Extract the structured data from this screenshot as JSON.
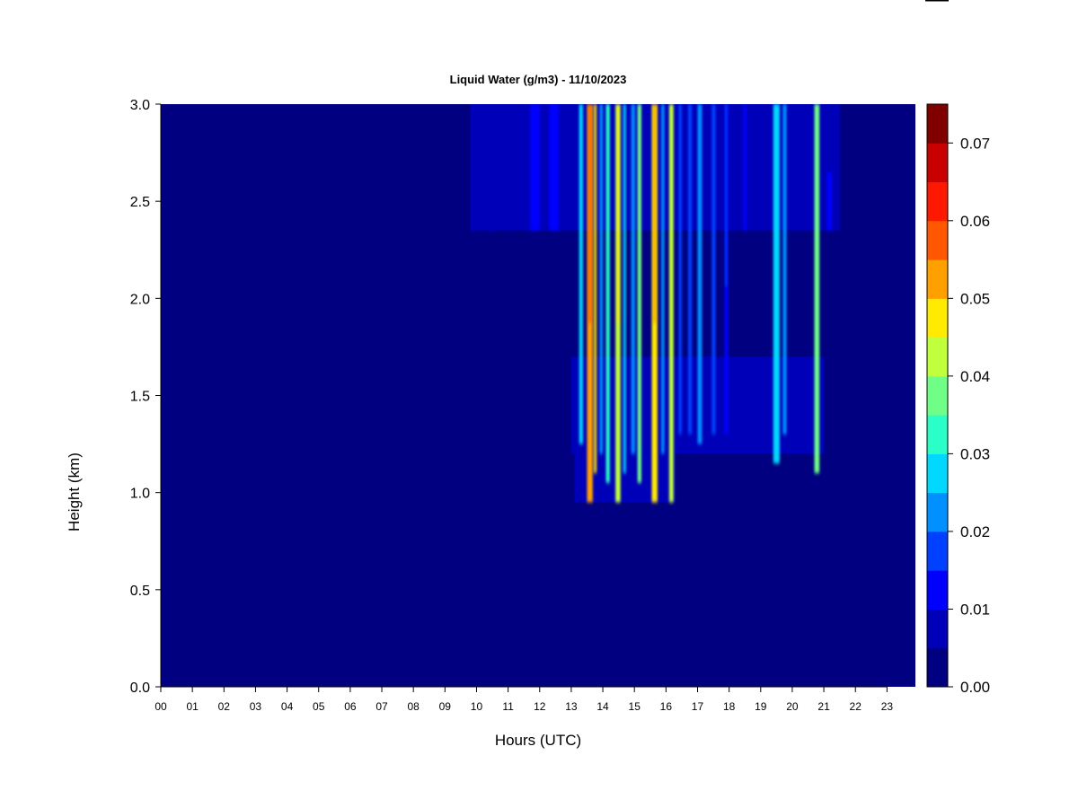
{
  "chart_data": {
    "type": "heatmap",
    "title": "Liquid Water (g/m3) - 11/10/2023",
    "xlabel": "Hours (UTC)",
    "ylabel": "Height (km)",
    "xlim": [
      0,
      23.9
    ],
    "ylim": [
      0,
      3
    ],
    "x_ticks": [
      "00",
      "01",
      "02",
      "03",
      "04",
      "05",
      "06",
      "07",
      "08",
      "09",
      "10",
      "11",
      "12",
      "13",
      "14",
      "15",
      "16",
      "17",
      "18",
      "19",
      "20",
      "21",
      "22",
      "23"
    ],
    "y_ticks": [
      "0.0",
      "0.5",
      "1.0",
      "1.5",
      "2.0",
      "2.5",
      "3.0"
    ],
    "colorbar": {
      "min": 0,
      "max": 0.075,
      "step": 0.005,
      "tick_values": [
        0.0,
        0.01,
        0.02,
        0.03,
        0.04,
        0.05,
        0.06,
        0.07
      ],
      "tick_labels": [
        "0.00",
        "0.01",
        "0.02",
        "0.03",
        "0.04",
        "0.05",
        "0.06",
        "0.07"
      ],
      "colors": [
        "#000080",
        "#0000b8",
        "#0000ff",
        "#0040ff",
        "#0090ff",
        "#00d8ff",
        "#2affc8",
        "#70ff86",
        "#c0ff3c",
        "#ffea00",
        "#ffa000",
        "#ff5800",
        "#ff1800",
        "#c80000",
        "#800000"
      ]
    },
    "background_value": 0.0,
    "cloud_layers": [
      {
        "name_hint": "upper",
        "x_range": [
          9.8,
          21.5
        ],
        "y_range": [
          2.35,
          3.0
        ]
      },
      {
        "name_hint": "middle",
        "x_range": [
          13.0,
          21.0
        ],
        "y_range": [
          1.2,
          1.7
        ]
      },
      {
        "name_hint": "lower",
        "x_range": [
          13.1,
          16.3
        ],
        "y_range": [
          0.95,
          1.3
        ]
      }
    ],
    "columns": [
      {
        "x": 9.85,
        "w": 0.15,
        "y0": 2.35,
        "y1": 3.0,
        "v": 0.007
      },
      {
        "x": 10.35,
        "w": 0.25,
        "y0": 2.35,
        "y1": 3.0,
        "v": 0.009
      },
      {
        "x": 10.9,
        "w": 0.3,
        "y0": 2.85,
        "y1": 3.0,
        "v": 0.008
      },
      {
        "x": 11.7,
        "w": 0.3,
        "y0": 2.35,
        "y1": 3.0,
        "v": 0.012
      },
      {
        "x": 12.3,
        "w": 0.3,
        "y0": 2.35,
        "y1": 3.0,
        "v": 0.013
      },
      {
        "x": 13.25,
        "w": 0.12,
        "y0": 1.25,
        "y1": 3.0,
        "v": 0.025
      },
      {
        "x": 13.5,
        "w": 0.18,
        "y0": 0.95,
        "y1": 3.0,
        "v": 0.05
      },
      {
        "x": 13.72,
        "w": 0.08,
        "y0": 1.1,
        "y1": 3.0,
        "v": 0.045
      },
      {
        "x": 13.9,
        "w": 0.1,
        "y0": 1.2,
        "y1": 3.0,
        "v": 0.02
      },
      {
        "x": 14.1,
        "w": 0.12,
        "y0": 1.05,
        "y1": 3.0,
        "v": 0.03
      },
      {
        "x": 14.4,
        "w": 0.16,
        "y0": 0.95,
        "y1": 3.0,
        "v": 0.042
      },
      {
        "x": 14.65,
        "w": 0.08,
        "y0": 1.1,
        "y1": 3.0,
        "v": 0.025
      },
      {
        "x": 14.9,
        "w": 0.12,
        "y0": 1.2,
        "y1": 3.0,
        "v": 0.022
      },
      {
        "x": 15.1,
        "w": 0.12,
        "y0": 1.05,
        "y1": 3.0,
        "v": 0.035
      },
      {
        "x": 15.55,
        "w": 0.18,
        "y0": 0.95,
        "y1": 3.0,
        "v": 0.048
      },
      {
        "x": 15.85,
        "w": 0.1,
        "y0": 1.2,
        "y1": 3.0,
        "v": 0.02
      },
      {
        "x": 16.1,
        "w": 0.14,
        "y0": 0.95,
        "y1": 3.0,
        "v": 0.04
      },
      {
        "x": 16.4,
        "w": 0.1,
        "y0": 1.3,
        "y1": 3.0,
        "v": 0.016
      },
      {
        "x": 16.7,
        "w": 0.12,
        "y0": 1.3,
        "y1": 3.0,
        "v": 0.015
      },
      {
        "x": 17.0,
        "w": 0.14,
        "y0": 1.25,
        "y1": 3.0,
        "v": 0.02
      },
      {
        "x": 17.45,
        "w": 0.12,
        "y0": 1.3,
        "y1": 3.0,
        "v": 0.016
      },
      {
        "x": 17.85,
        "w": 0.12,
        "y0": 1.3,
        "y1": 3.0,
        "v": 0.014
      },
      {
        "x": 18.45,
        "w": 0.1,
        "y0": 2.35,
        "y1": 3.0,
        "v": 0.012
      },
      {
        "x": 19.4,
        "w": 0.2,
        "y0": 1.15,
        "y1": 3.0,
        "v": 0.025
      },
      {
        "x": 19.7,
        "w": 0.12,
        "y0": 1.3,
        "y1": 3.0,
        "v": 0.02
      },
      {
        "x": 20.7,
        "w": 0.16,
        "y0": 1.1,
        "y1": 3.0,
        "v": 0.035
      },
      {
        "x": 21.1,
        "w": 0.15,
        "y0": 2.35,
        "y1": 2.65,
        "v": 0.01
      }
    ]
  }
}
